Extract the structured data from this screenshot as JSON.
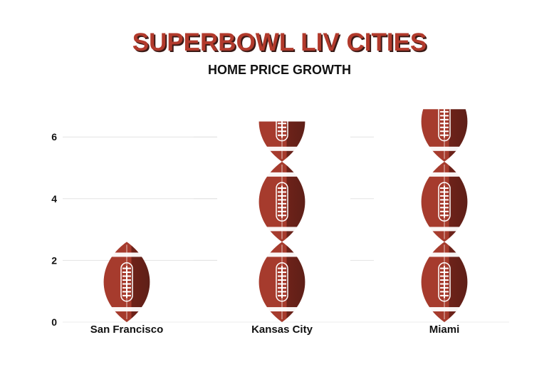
{
  "title": "SUPERBOWL LIV CITIES",
  "subtitle": "HOME PRICE GROWTH",
  "colors": {
    "title": "#b23a2c",
    "title_shadow": "#3a1a16",
    "ball_light": "#a63b2d",
    "ball_dark": "#5e1f18",
    "lace": "#ffffff",
    "grid": "#e3e3e3"
  },
  "chart_data": {
    "type": "bar",
    "style": "pictograph-football",
    "categories": [
      "San Francisco",
      "Kansas City",
      "Miami"
    ],
    "values": [
      2.6,
      6.5,
      6.9
    ],
    "unit_per_icon": 2.6,
    "ylim": [
      0,
      7.2
    ],
    "yticks": [
      0,
      2,
      4,
      6
    ],
    "grid": true,
    "title": "SUPERBOWL LIV CITIES",
    "subtitle": "HOME PRICE GROWTH",
    "xlabel": "",
    "ylabel": ""
  }
}
